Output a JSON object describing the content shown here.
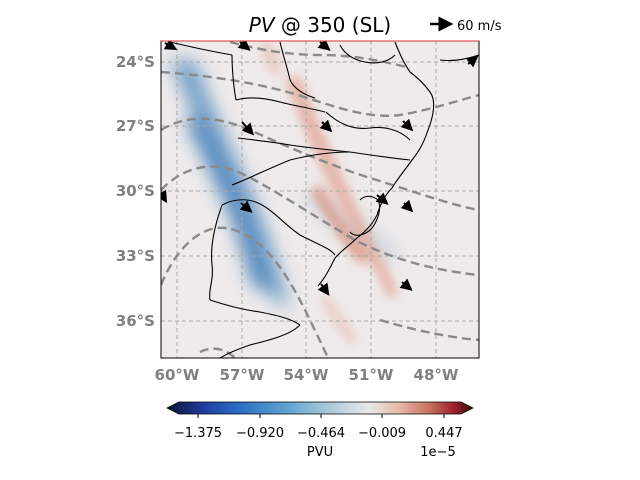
{
  "title": {
    "italic_part": "PV",
    "rest": " @ 350 (SL)"
  },
  "quiver_key": {
    "label": "60 m/s"
  },
  "map": {
    "lon_range": [
      -61.0,
      -46.0
    ],
    "lat_range": [
      -38.0,
      -23.0
    ],
    "lat_ticks": [
      {
        "value": -24,
        "label": "24°S"
      },
      {
        "value": -27,
        "label": "27°S"
      },
      {
        "value": -30,
        "label": "30°S"
      },
      {
        "value": -33,
        "label": "33°S"
      },
      {
        "value": -36,
        "label": "36°S"
      }
    ],
    "lon_ticks": [
      {
        "value": -60,
        "label": "60°W"
      },
      {
        "value": -57,
        "label": "57°W"
      },
      {
        "value": -54,
        "label": "54°W"
      },
      {
        "value": -51,
        "label": "51°W"
      },
      {
        "value": -48,
        "label": "48°W"
      }
    ],
    "gridlines": "dashed gray",
    "colors": {
      "negative": "#3a7fbf",
      "positive": "#d7806a",
      "neutral": "#f0ecec",
      "contour": "#8a8a8a",
      "coast": "#000000"
    }
  },
  "colorbar": {
    "label": "PVU",
    "exponent": "1e−5",
    "ticks": [
      {
        "value": -1.375,
        "label": "−1.375"
      },
      {
        "value": -0.92,
        "label": "−0.920"
      },
      {
        "value": -0.464,
        "label": "−0.464"
      },
      {
        "value": -0.009,
        "label": "−0.009"
      },
      {
        "value": 0.447,
        "label": "0.447"
      }
    ],
    "range": [
      -1.6,
      0.72
    ],
    "colormap": [
      "#0d1333",
      "#1f3d9e",
      "#2b70c6",
      "#5c9fd1",
      "#a5c7da",
      "#e8e9ea",
      "#e6b8a8",
      "#c6705d",
      "#9c1f2f",
      "#3a0713"
    ]
  }
}
